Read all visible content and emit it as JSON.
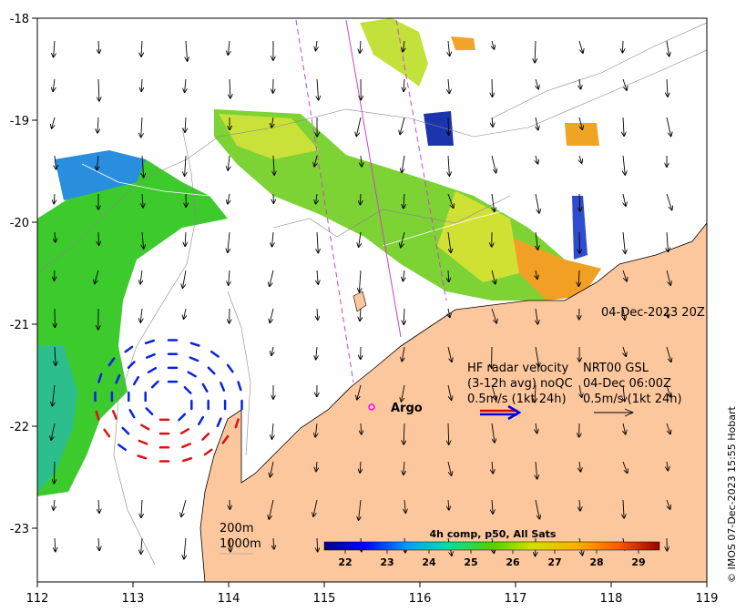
{
  "map": {
    "lon_ticks": [
      "112",
      "113",
      "114",
      "115",
      "116",
      "117",
      "118",
      "119"
    ],
    "lat_ticks": [
      "-18",
      "-19",
      "-20",
      "-21",
      "-22",
      "-23"
    ],
    "lon_range": [
      112,
      119
    ],
    "lat_range": [
      -23.6,
      -18
    ]
  },
  "timestamp": "04-Dec-2023 20Z",
  "legend": {
    "hf_line1": "HF radar velocity",
    "hf_line2": "(3-12h avg) noQC",
    "hf_line3": "0.5m/s (1kt 24h)",
    "gsl_line1": "NRT00 GSL",
    "gsl_line2": "04-Dec 06:00Z",
    "gsl_line3": "0.5m/s (1kt 24h)"
  },
  "argo_label": "Argo",
  "contours": {
    "label_200": "200m",
    "label_1000": "1000m"
  },
  "colorbar": {
    "title": "4h comp, p50, All Sats",
    "ticks": [
      "22",
      "23",
      "24",
      "25",
      "26",
      "27",
      "28",
      "29"
    ],
    "range": [
      21.5,
      29.5
    ]
  },
  "copyright": "© IMOS 07-Dec-2023 15:55 Hobart",
  "colors": {
    "land": "#fdc79e",
    "argo": "#ff00ff",
    "track": "#cc44cc",
    "arrow_hf_red": "#e00000",
    "arrow_hf_blue": "#0000e0",
    "eddy_blue": "#0a22dd",
    "eddy_red": "#dd1111"
  }
}
